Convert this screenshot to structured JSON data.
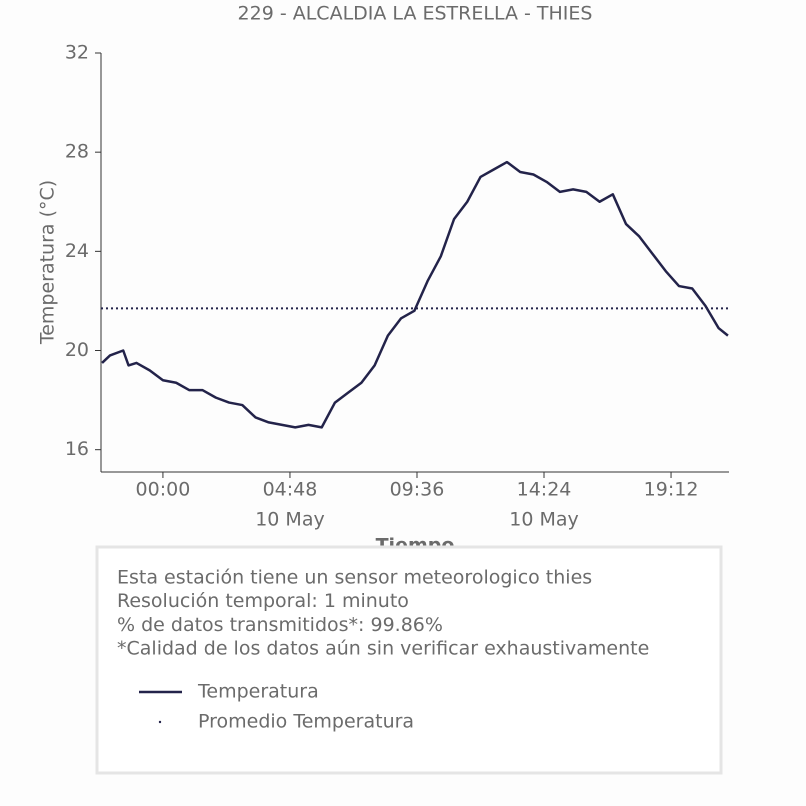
{
  "chart_data": {
    "type": "line",
    "title": "229 - ALCALDIA LA ESTRELLA - THIES",
    "ylabel": "Temperatura (°C)",
    "xlabel": "Tiempo",
    "x": [
      -2.3,
      -2.0,
      -1.5,
      -1.3,
      -1.0,
      -0.5,
      0,
      0.5,
      1.0,
      1.5,
      2.0,
      2.5,
      3.0,
      3.5,
      4.0,
      4.5,
      5.0,
      5.5,
      6.0,
      6.5,
      7.0,
      7.5,
      8.0,
      8.5,
      9.0,
      9.5,
      10.0,
      10.5,
      11.0,
      11.5,
      12.0,
      12.5,
      13.0,
      13.5,
      14.0,
      14.5,
      15.0,
      15.5,
      16.0,
      16.5,
      17.0,
      17.5,
      18.0,
      18.5,
      19.0,
      19.5,
      20.0,
      20.5,
      21.0,
      21.35
    ],
    "series": [
      {
        "name": "Temperatura",
        "color": "#23234a",
        "values": [
          19.5,
          19.8,
          20.0,
          19.4,
          19.5,
          19.2,
          18.8,
          18.7,
          18.4,
          18.4,
          18.1,
          17.9,
          17.8,
          17.3,
          17.1,
          17.0,
          16.9,
          17.0,
          16.9,
          17.9,
          18.3,
          18.7,
          19.4,
          20.6,
          21.3,
          21.6,
          22.8,
          23.8,
          25.3,
          26.0,
          27.0,
          27.3,
          27.6,
          27.2,
          27.1,
          26.8,
          26.4,
          26.5,
          26.4,
          26.0,
          26.3,
          25.1,
          24.6,
          23.9,
          23.2,
          22.6,
          22.5,
          21.8,
          20.9,
          20.6
        ]
      }
    ],
    "mean": {
      "name": "Promedio Temperatura",
      "value": 21.7,
      "color": "#23234a"
    },
    "xlim": [
      -2.34,
      21.39
    ],
    "xticks": [
      {
        "value": 0,
        "label": "00:00"
      },
      {
        "value": 4.8,
        "label": "04:48",
        "date": "10 May"
      },
      {
        "value": 9.6,
        "label": "09:36"
      },
      {
        "value": 14.4,
        "label": "14:24",
        "date": "10 May"
      },
      {
        "value": 19.2,
        "label": "19:12"
      }
    ],
    "ylim": [
      15.1,
      32
    ],
    "yticks": [
      16,
      20,
      24,
      28,
      32
    ],
    "notes": [
      "Esta estación tiene un sensor meteorologico thies",
      "Resolución temporal: 1 minuto",
      "% de datos transmitidos*: 99.86%",
      "*Calidad de los datos aún sin verificar exhaustivamente"
    ]
  }
}
